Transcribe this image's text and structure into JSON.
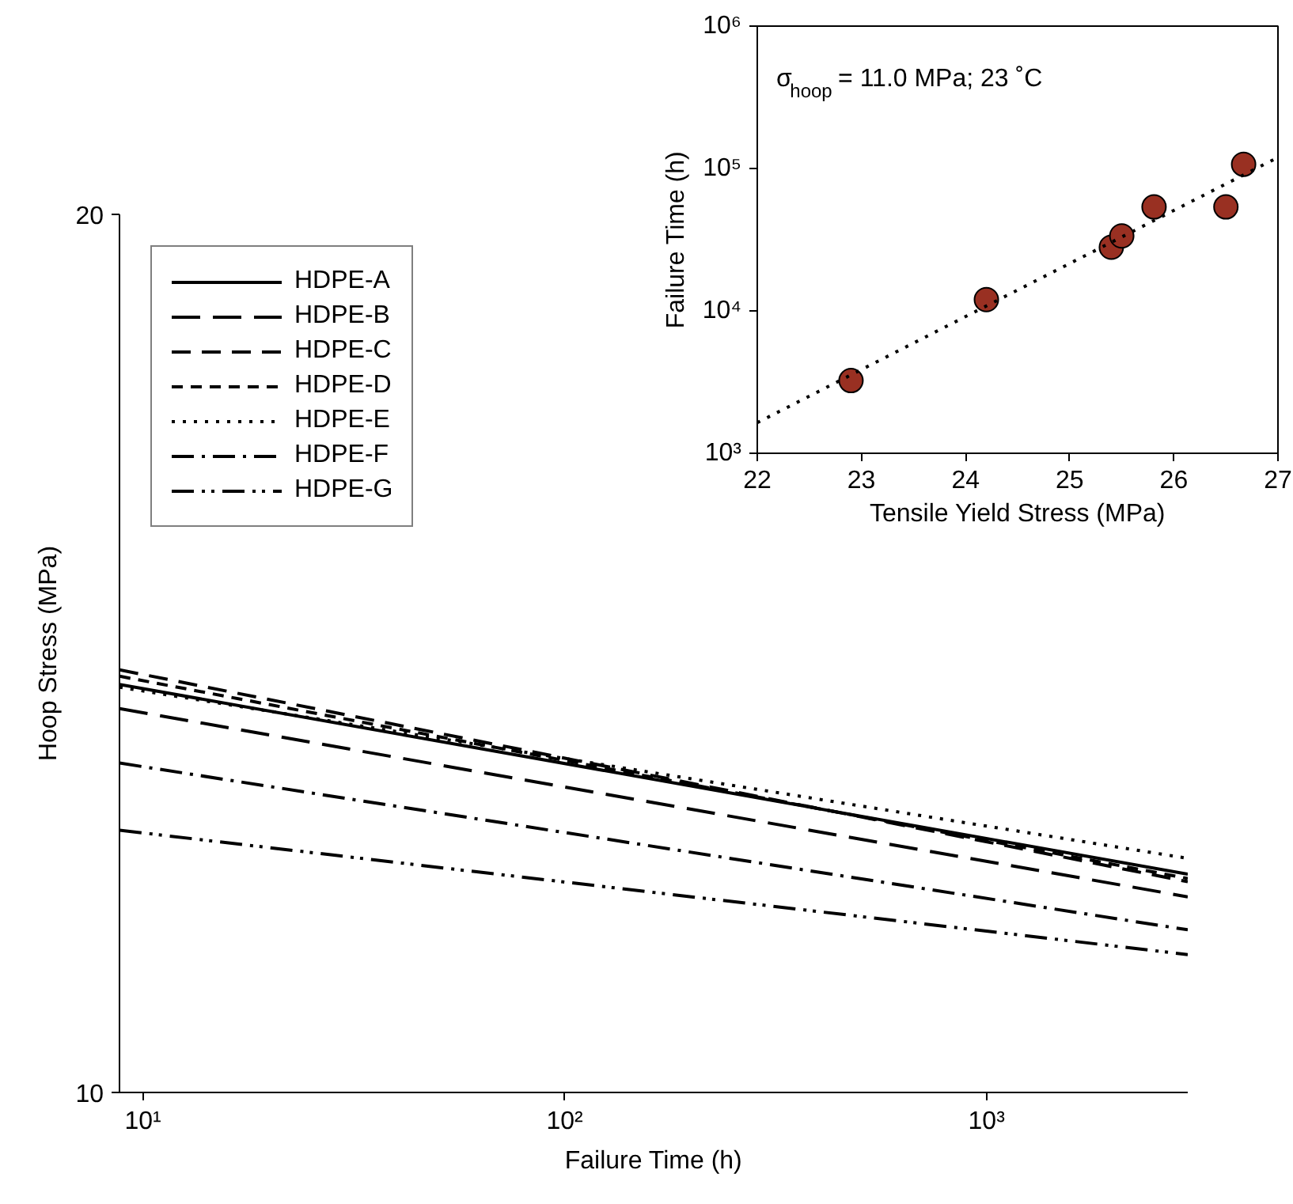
{
  "chart_data": [
    {
      "type": "line",
      "xlabel": "Failure Time (h)",
      "ylabel": "Hoop Stress (MPa)",
      "log": "xy",
      "grid": false,
      "legend": "top left",
      "marker": "none",
      "xlim": [
        8.8,
        3000
      ],
      "ylim": [
        10,
        20
      ],
      "xticks": [
        {
          "value": 10,
          "label": "10¹"
        },
        {
          "value": 100,
          "label": "10²"
        },
        {
          "value": 1000,
          "label": "10³"
        }
      ],
      "yticks": [
        10,
        20
      ],
      "series": [
        {
          "name": "HDPE-A",
          "color": "#000000",
          "line_style": "solid",
          "x": [
            8.8,
            3000
          ],
          "values": [
            13.8,
            11.88
          ]
        },
        {
          "name": "HDPE-B",
          "color": "#000000",
          "line_style": "longdash",
          "x": [
            8.8,
            3000
          ],
          "values": [
            13.54,
            11.67
          ]
        },
        {
          "name": "HDPE-C",
          "color": "#000000",
          "line_style": "dashed",
          "x": [
            8.8,
            3000
          ],
          "values": [
            13.96,
            11.81
          ]
        },
        {
          "name": "HDPE-D",
          "color": "#000000",
          "line_style": "shortdash",
          "x": [
            8.8,
            3000
          ],
          "values": [
            13.89,
            11.84
          ]
        },
        {
          "name": "HDPE-E",
          "color": "#000000",
          "line_style": "dotted",
          "x": [
            8.8,
            3000
          ],
          "values": [
            13.77,
            12.03
          ]
        },
        {
          "name": "HDPE-F",
          "color": "#000000",
          "line_style": "dashdot",
          "x": [
            8.8,
            3000
          ],
          "values": [
            12.97,
            11.37
          ]
        },
        {
          "name": "HDPE-G",
          "color": "#000000",
          "line_style": "dashdotdot",
          "x": [
            8.8,
            3000
          ],
          "values": [
            12.3,
            11.15
          ]
        }
      ]
    },
    {
      "type": "scatter",
      "xlabel": "Tensile Yield Stress (MPa)",
      "ylabel": "Failure Time (h)",
      "log": "y",
      "grid": false,
      "legend": false,
      "marker": "circle",
      "xlim": [
        22,
        27
      ],
      "ylim": [
        1000,
        1000000
      ],
      "xticks": [
        22,
        23,
        24,
        25,
        26,
        27
      ],
      "yticks": [
        {
          "value": 1000,
          "label": "10³"
        },
        {
          "value": 10000,
          "label": "10⁴"
        },
        {
          "value": 100000,
          "label": "10⁵"
        },
        {
          "value": 1000000,
          "label": "10⁶"
        }
      ],
      "annotations": [
        "σ$_{hoop}$ = 11.0 MPa;  23 ˚C"
      ],
      "series": [
        {
          "color": "#993022",
          "x": [
            22.9,
            24.2,
            25.4,
            25.5,
            25.81,
            26.5,
            26.67
          ],
          "values": [
            3240,
            12000,
            28000,
            33600,
            53700,
            53700,
            107000
          ]
        },
        {
          "type": "line",
          "color": "#000000",
          "line_style": "dotted",
          "marker": "none",
          "x": [
            22,
            27
          ],
          "values": [
            1640,
            119700
          ]
        }
      ]
    }
  ]
}
